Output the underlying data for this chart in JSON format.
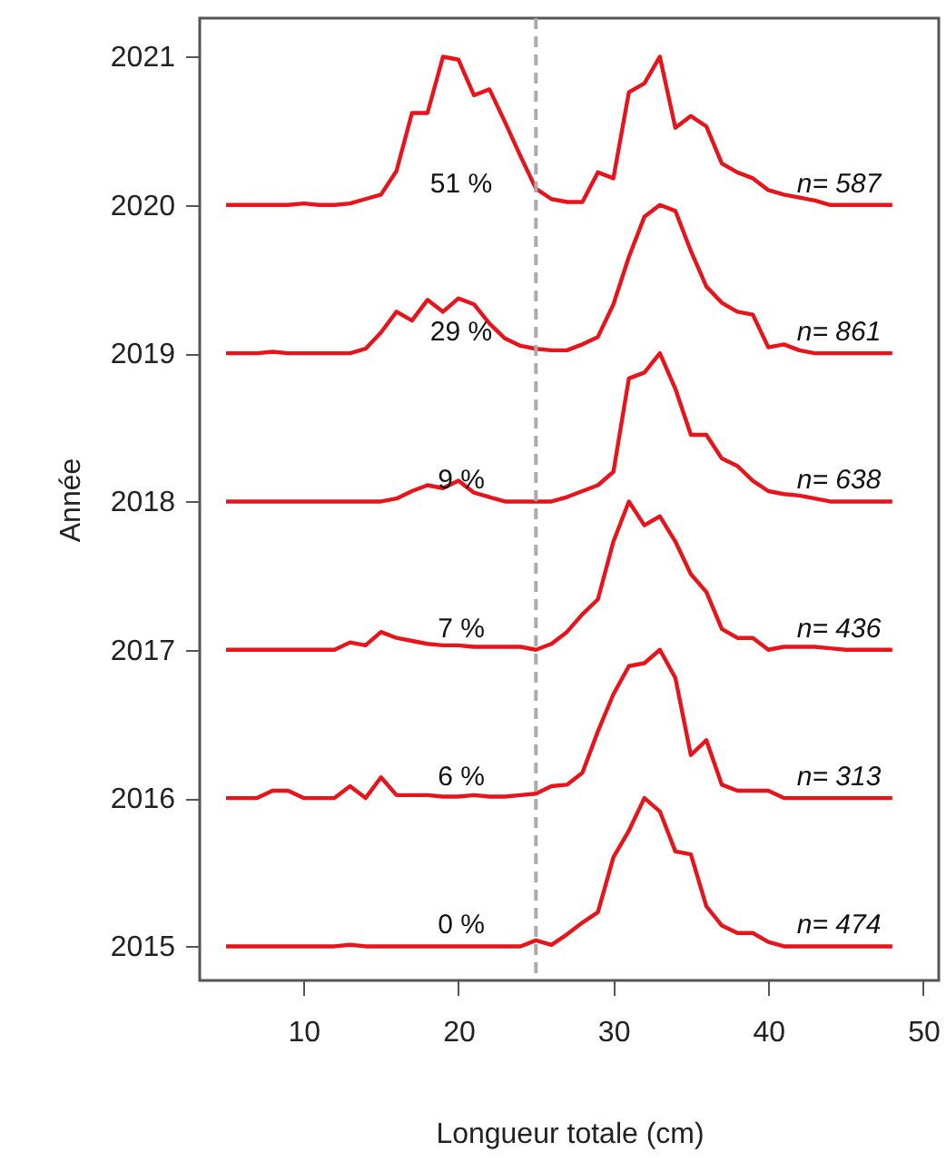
{
  "chart_data": {
    "type": "line",
    "xlabel": "Longueur totale (cm)",
    "ylabel": "Année",
    "x": [
      5,
      6,
      7,
      8,
      9,
      10,
      11,
      12,
      13,
      14,
      15,
      16,
      17,
      18,
      19,
      20,
      21,
      22,
      23,
      24,
      25,
      26,
      27,
      28,
      29,
      30,
      31,
      32,
      33,
      34,
      35,
      36,
      37,
      38,
      39,
      40,
      41,
      42,
      43,
      44,
      45,
      46,
      47,
      48
    ],
    "series": [
      {
        "color": "#e8141c",
        "values": [
          2015,
          2015,
          2015,
          2015,
          2015,
          2015,
          2015,
          2015,
          2015.01,
          2015,
          2015,
          2015,
          2015,
          2015,
          2015,
          2015,
          2015,
          2015,
          2015,
          2015,
          2015.04,
          2015.01,
          2015.08,
          2015.16,
          2015.23,
          2015.6,
          2015.78,
          2016,
          2015.91,
          2015.64,
          2015.62,
          2015.27,
          2015.14,
          2015.09,
          2015.09,
          2015.03,
          2015,
          2015,
          2015,
          2015,
          2015,
          2015,
          2015,
          2015
        ]
      },
      {
        "color": "#e8141c",
        "values": [
          2016,
          2016,
          2016,
          2016.05,
          2016.05,
          2016,
          2016,
          2016,
          2016.08,
          2016,
          2016.14,
          2016.02,
          2016.02,
          2016.02,
          2016.01,
          2016.01,
          2016.02,
          2016.01,
          2016.01,
          2016.02,
          2016.03,
          2016.08,
          2016.09,
          2016.17,
          2016.45,
          2016.7,
          2016.89,
          2016.91,
          2017,
          2016.81,
          2016.29,
          2016.39,
          2016.09,
          2016.05,
          2016.05,
          2016.05,
          2016,
          2016,
          2016,
          2016,
          2016,
          2016,
          2016,
          2016
        ]
      },
      {
        "color": "#e8141c",
        "values": [
          2017,
          2017,
          2017,
          2017,
          2017,
          2017,
          2017,
          2017,
          2017.05,
          2017.03,
          2017.12,
          2017.08,
          2017.06,
          2017.04,
          2017.03,
          2017.03,
          2017.02,
          2017.02,
          2017.02,
          2017.02,
          2017,
          2017.04,
          2017.12,
          2017.24,
          2017.34,
          2017.73,
          2018,
          2017.84,
          2017.9,
          2017.73,
          2017.51,
          2017.39,
          2017.14,
          2017.08,
          2017.08,
          2017,
          2017.02,
          2017.02,
          2017.02,
          2017.01,
          2017,
          2017,
          2017,
          2017
        ]
      },
      {
        "color": "#e8141c",
        "values": [
          2018,
          2018,
          2018,
          2018,
          2018,
          2018,
          2018,
          2018,
          2018,
          2018,
          2018,
          2018.02,
          2018.07,
          2018.11,
          2018.09,
          2018.14,
          2018.06,
          2018.03,
          2018,
          2018,
          2018,
          2018,
          2018.03,
          2018.07,
          2018.11,
          2018.2,
          2018.83,
          2018.87,
          2019,
          2018.76,
          2018.45,
          2018.45,
          2018.29,
          2018.24,
          2018.14,
          2018.07,
          2018.05,
          2018.04,
          2018.02,
          2018,
          2018,
          2018,
          2018,
          2018
        ]
      },
      {
        "color": "#e8141c",
        "values": [
          2019,
          2019,
          2019,
          2019.01,
          2019,
          2019,
          2019,
          2019,
          2019,
          2019.03,
          2019.14,
          2019.28,
          2019.22,
          2019.36,
          2019.28,
          2019.37,
          2019.33,
          2019.2,
          2019.1,
          2019.05,
          2019.03,
          2019.02,
          2019.02,
          2019.06,
          2019.11,
          2019.33,
          2019.65,
          2019.92,
          2020,
          2019.96,
          2019.69,
          2019.45,
          2019.34,
          2019.28,
          2019.26,
          2019.04,
          2019.06,
          2019.02,
          2019,
          2019,
          2019,
          2019,
          2019,
          2019
        ]
      },
      {
        "color": "#e8141c",
        "values": [
          2020,
          2020,
          2020,
          2020,
          2020,
          2020.01,
          2020,
          2020,
          2020.01,
          2020.04,
          2020.07,
          2020.23,
          2020.62,
          2020.62,
          2021,
          2020.98,
          2020.74,
          2020.78,
          2020.56,
          2020.33,
          2020.11,
          2020.04,
          2020.02,
          2020.02,
          2020.22,
          2020.18,
          2020.76,
          2020.82,
          2021,
          2020.52,
          2020.6,
          2020.53,
          2020.28,
          2020.22,
          2020.18,
          2020.1,
          2020.07,
          2020.05,
          2020.03,
          2020,
          2020,
          2020,
          2020,
          2020
        ]
      }
    ],
    "annotations": [
      "0 %",
      "n= 474",
      "6 %",
      "n= 313",
      "7 %",
      "n= 436",
      "9 %",
      "n= 638",
      "29 %",
      "n= 861",
      "51 %",
      "n= 587"
    ],
    "ref_lines": [
      {
        "axis": "x",
        "value": 25,
        "color": "#aaaaaa",
        "line_style": "dashed"
      }
    ],
    "xlim": [
      3.3,
      51
    ],
    "ylim": [
      2014.77,
      2021.26
    ],
    "xticks": [
      10,
      20,
      30,
      40,
      50
    ],
    "yticks": [
      2015,
      2016,
      2017,
      2018,
      2019,
      2020,
      2021
    ],
    "grid": false
  }
}
